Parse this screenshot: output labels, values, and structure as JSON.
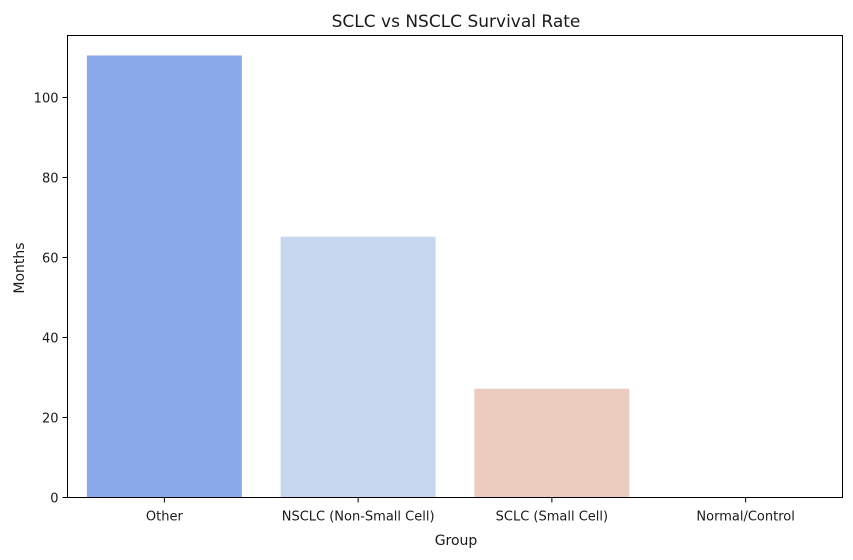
{
  "chart_data": {
    "type": "bar",
    "title": "SCLC vs NSCLC Survival Rate",
    "xlabel": "Group",
    "ylabel": "Months",
    "categories": [
      "Other",
      "NSCLC (Non-Small Cell)",
      "SCLC (Small Cell)",
      "Normal/Control"
    ],
    "values": [
      110.5,
      65.2,
      27.2,
      0
    ],
    "colors": [
      "#8aa9ea",
      "#c8d7f0",
      "#eacdbf",
      "#e0937f"
    ],
    "ylim": [
      0,
      115.5
    ],
    "yticks": [
      0,
      20,
      40,
      60,
      80,
      100
    ],
    "ytick_labels": [
      "0",
      "20",
      "40",
      "60",
      "80",
      "100"
    ],
    "grid": false,
    "legend": "none"
  }
}
